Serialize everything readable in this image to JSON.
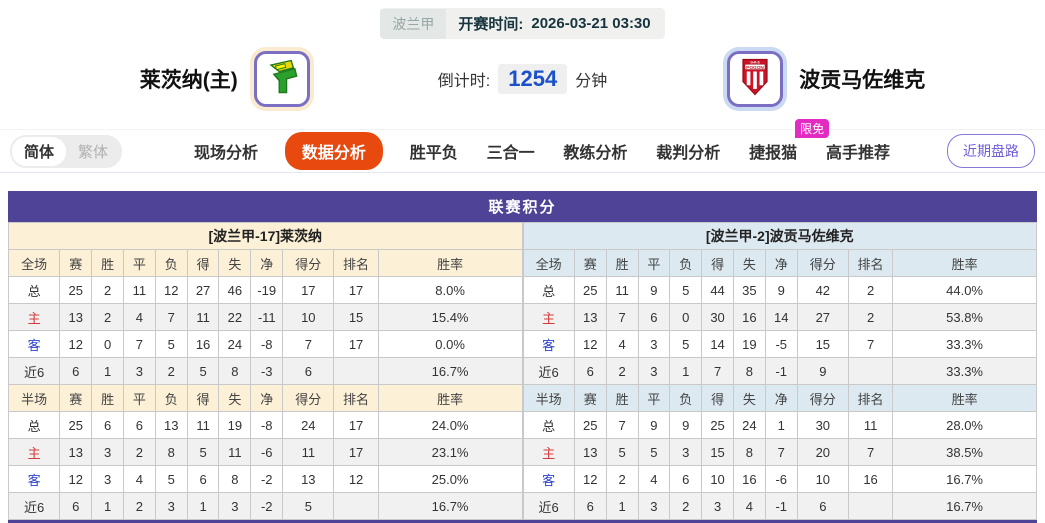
{
  "top": {
    "league": "波兰甲",
    "kickoff_label": "开赛时间:",
    "kickoff_time": "2026-03-21 03:30"
  },
  "match": {
    "home": {
      "name": "莱茨纳(主)",
      "logo_icon": "home-team-badge-icon"
    },
    "away": {
      "name": "波贡马佐维克",
      "logo_icon": "away-team-shield-icon",
      "logo_text_top": "G-K-S",
      "logo_text_band": "POGON"
    },
    "countdown": {
      "label": "倒计时:",
      "value": "1254",
      "unit": "分钟"
    }
  },
  "nav": {
    "lang": {
      "simplified": "简体",
      "traditional": "繁体"
    },
    "tabs": [
      {
        "label": "现场分析"
      },
      {
        "label": "数据分析",
        "active": true
      },
      {
        "label": "胜平负"
      },
      {
        "label": "三合一"
      },
      {
        "label": "教练分析"
      },
      {
        "label": "裁判分析"
      },
      {
        "label": "捷报猫",
        "badge": "限免"
      },
      {
        "label": "高手推荐"
      }
    ],
    "recent_button": "近期盘路"
  },
  "table": {
    "title": "联赛积分",
    "columns_full": [
      "全场",
      "赛",
      "胜",
      "平",
      "负",
      "得",
      "失",
      "净",
      "得分",
      "排名",
      "胜率"
    ],
    "columns_half": [
      "半场",
      "赛",
      "胜",
      "平",
      "负",
      "得",
      "失",
      "净",
      "得分",
      "排名",
      "胜率"
    ],
    "left": {
      "subtitle": "[波兰甲-17]莱茨纳",
      "full_rows": [
        {
          "label": "总",
          "accent": "",
          "cells": [
            "25",
            "2",
            "11",
            "12",
            "27",
            "46",
            "-19",
            "17",
            "17",
            "8.0%"
          ]
        },
        {
          "label": "主",
          "accent": "red",
          "cells": [
            "13",
            "2",
            "4",
            "7",
            "11",
            "22",
            "-11",
            "10",
            "15",
            "15.4%"
          ]
        },
        {
          "label": "客",
          "accent": "blue",
          "cells": [
            "12",
            "0",
            "7",
            "5",
            "16",
            "24",
            "-8",
            "7",
            "17",
            "0.0%"
          ]
        },
        {
          "label": "近6",
          "accent": "",
          "cells": [
            "6",
            "1",
            "3",
            "2",
            "5",
            "8",
            "-3",
            "6",
            "",
            "16.7%"
          ]
        }
      ],
      "half_rows": [
        {
          "label": "总",
          "accent": "",
          "cells": [
            "25",
            "6",
            "6",
            "13",
            "11",
            "19",
            "-8",
            "24",
            "17",
            "24.0%"
          ]
        },
        {
          "label": "主",
          "accent": "red",
          "cells": [
            "13",
            "3",
            "2",
            "8",
            "5",
            "11",
            "-6",
            "11",
            "17",
            "23.1%"
          ]
        },
        {
          "label": "客",
          "accent": "blue",
          "cells": [
            "12",
            "3",
            "4",
            "5",
            "6",
            "8",
            "-2",
            "13",
            "12",
            "25.0%"
          ]
        },
        {
          "label": "近6",
          "accent": "",
          "cells": [
            "6",
            "1",
            "2",
            "3",
            "1",
            "3",
            "-2",
            "5",
            "",
            "16.7%"
          ]
        }
      ]
    },
    "right": {
      "subtitle": "[波兰甲-2]波贡马佐维克",
      "full_rows": [
        {
          "label": "总",
          "accent": "",
          "cells": [
            "25",
            "11",
            "9",
            "5",
            "44",
            "35",
            "9",
            "42",
            "2",
            "44.0%"
          ]
        },
        {
          "label": "主",
          "accent": "red",
          "cells": [
            "13",
            "7",
            "6",
            "0",
            "30",
            "16",
            "14",
            "27",
            "2",
            "53.8%"
          ]
        },
        {
          "label": "客",
          "accent": "blue",
          "cells": [
            "12",
            "4",
            "3",
            "5",
            "14",
            "19",
            "-5",
            "15",
            "7",
            "33.3%"
          ]
        },
        {
          "label": "近6",
          "accent": "",
          "cells": [
            "6",
            "2",
            "3",
            "1",
            "7",
            "8",
            "-1",
            "9",
            "",
            "33.3%"
          ]
        }
      ],
      "half_rows": [
        {
          "label": "总",
          "accent": "",
          "cells": [
            "25",
            "7",
            "9",
            "9",
            "25",
            "24",
            "1",
            "30",
            "11",
            "28.0%"
          ]
        },
        {
          "label": "主",
          "accent": "red",
          "cells": [
            "13",
            "5",
            "5",
            "3",
            "15",
            "8",
            "7",
            "20",
            "7",
            "38.5%"
          ]
        },
        {
          "label": "客",
          "accent": "blue",
          "cells": [
            "12",
            "2",
            "4",
            "6",
            "10",
            "16",
            "-6",
            "10",
            "16",
            "16.7%"
          ]
        },
        {
          "label": "近6",
          "accent": "",
          "cells": [
            "6",
            "1",
            "3",
            "2",
            "3",
            "4",
            "-1",
            "6",
            "",
            "16.7%"
          ]
        }
      ]
    }
  },
  "colors": {
    "board_purple": "#4f4398",
    "active_tab_orange": "#e8490f",
    "badge_pink": "#e32bc4",
    "home_row_red": "#d43a3a",
    "away_row_blue": "#2d43cf",
    "countdown_blue": "#1b50c8"
  }
}
